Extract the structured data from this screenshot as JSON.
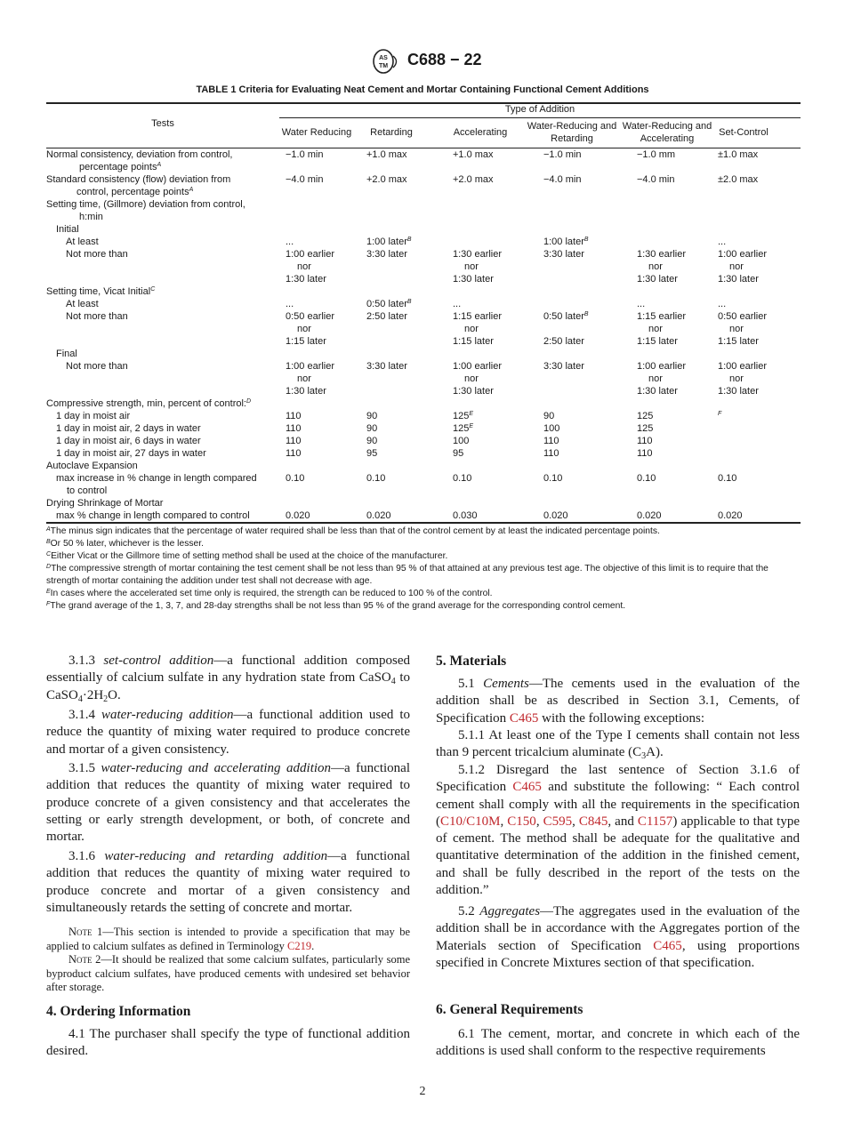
{
  "header": {
    "doc_id": "C688 − 22",
    "logo_text": "ASTM"
  },
  "table": {
    "title": "TABLE 1 Criteria for Evaluating Neat Cement and Mortar Containing Functional Cement Additions",
    "tests_header": "Tests",
    "group_header": "Type of Addition",
    "columns": [
      "Water Reducing",
      "Retarding",
      "Accelerating",
      "Water-Reducing and Retarding",
      "Water-Reducing and Accelerating",
      "Set-Control"
    ],
    "rows": [
      {
        "test": "Normal consistency, deviation from control,",
        "cells": [
          "−1.0 min",
          "+1.0 max",
          "+1.0 max",
          "−1.0 min",
          "−1.0 mm",
          "±1.0 max"
        ]
      },
      {
        "test": "percentage points",
        "sup": "A",
        "cells": [
          "",
          "",
          "",
          "",
          "",
          ""
        ]
      },
      {
        "test": "Standard consistency (flow) deviation from",
        "cells": [
          "−4.0 min",
          "+2.0 max",
          "+2.0 max",
          "−4.0 min",
          "−4.0 min",
          "±2.0 max"
        ]
      },
      {
        "test": "control, percentage points",
        "sup": "A",
        "cells": [
          "",
          "",
          "",
          "",
          "",
          ""
        ]
      },
      {
        "test": "Setting time, (Gillmore) deviation from control,",
        "cells": [
          "",
          "",
          "",
          "",
          "",
          ""
        ]
      },
      {
        "test": "h:min",
        "cells": [
          "",
          "",
          "",
          "",
          "",
          ""
        ]
      },
      {
        "test": "Initial",
        "cells": [
          "",
          "",
          "",
          "",
          "",
          ""
        ]
      },
      {
        "test": "At least",
        "cells": [
          "...",
          "1:00 later|B",
          "",
          "1:00 later|B",
          "",
          "..."
        ]
      },
      {
        "test": "Not more than",
        "cells": [
          "1:00 earlier",
          "3:30 later",
          "1:30 earlier",
          "3:30 later",
          "1:30 earlier",
          "1:00 earlier"
        ]
      },
      {
        "test": "",
        "cells": [
          "nor",
          "",
          "nor",
          "",
          "nor",
          "nor"
        ]
      },
      {
        "test": "",
        "cells": [
          "1:30 later",
          "",
          "1:30 later",
          "",
          "1:30 later",
          "1:30 later"
        ]
      },
      {
        "test": "Setting time, Vicat Initial",
        "sup": "C",
        "cells": [
          "",
          "",
          "",
          "",
          "",
          ""
        ]
      },
      {
        "test": "At least",
        "cells": [
          "...",
          "0:50 later|B",
          "...",
          "",
          "...",
          "..."
        ]
      },
      {
        "test": "Not more than",
        "cells": [
          "0:50 earlier",
          "2:50 later",
          "1:15 earlier",
          "0:50 later|B",
          "1:15 earlier",
          "0:50 earlier"
        ]
      },
      {
        "test": "",
        "cells": [
          "nor",
          "",
          "nor",
          "",
          "nor",
          "nor"
        ]
      },
      {
        "test": "",
        "cells": [
          "1:15 later",
          "",
          "1:15 later",
          "2:50 later",
          "1:15 later",
          "1:15 later"
        ]
      },
      {
        "test": "Final",
        "cells": [
          "",
          "",
          "",
          "",
          "",
          ""
        ]
      },
      {
        "test": "Not more than",
        "cells": [
          "1:00 earlier",
          "3:30 later",
          "1:00 earlier",
          "3:30 later",
          "1:00 earlier",
          "1:00 earlier"
        ]
      },
      {
        "test": "",
        "cells": [
          "nor",
          "",
          "nor",
          "",
          "nor",
          "nor"
        ]
      },
      {
        "test": "",
        "cells": [
          "1:30 later",
          "",
          "1:30 later",
          "",
          "1:30 later",
          "1:30 later"
        ]
      },
      {
        "test": "Compressive strength, min, percent of control:",
        "sup": "D",
        "cells": [
          "",
          "",
          "",
          "",
          "",
          ""
        ]
      },
      {
        "test": "1 day in moist air",
        "cells": [
          "110",
          "90",
          "125|E",
          "90",
          "125",
          "|F"
        ]
      },
      {
        "test": "1 day in moist air, 2 days in water",
        "cells": [
          "110",
          "90",
          "125|E",
          "100",
          "125",
          ""
        ]
      },
      {
        "test": "1 day in moist air, 6 days in water",
        "cells": [
          "110",
          "90",
          "100",
          "110",
          "110",
          ""
        ]
      },
      {
        "test": "1 day in moist air, 27 days in water",
        "cells": [
          "110",
          "95",
          "95",
          "110",
          "110",
          ""
        ]
      },
      {
        "test": "Autoclave Expansion",
        "cells": [
          "",
          "",
          "",
          "",
          "",
          ""
        ]
      },
      {
        "test": "max increase in % change in length compared",
        "cells": [
          "0.10",
          "0.10",
          "0.10",
          "0.10",
          "0.10",
          "0.10"
        ]
      },
      {
        "test": "to control",
        "cells": [
          "",
          "",
          "",
          "",
          "",
          ""
        ]
      },
      {
        "test": "Drying Shrinkage of Mortar",
        "cells": [
          "",
          "",
          "",
          "",
          "",
          ""
        ]
      },
      {
        "test": "max % change in length compared to control",
        "cells": [
          "0.020",
          "0.020",
          "0.030",
          "0.020",
          "0.020",
          "0.020"
        ]
      }
    ],
    "footnotes": [
      {
        "mark": "A",
        "text": "The minus sign indicates that the percentage of water required shall be less than that of the control cement by at least the indicated percentage points."
      },
      {
        "mark": "B",
        "text": "Or 50 % later, whichever is the lesser."
      },
      {
        "mark": "C",
        "text": "Either Vicat or the Gillmore time of setting method shall be used at the choice of the manufacturer."
      },
      {
        "mark": "D",
        "text": "The compressive strength of mortar containing the test cement shall be not less than 95 % of that attained at any previous test age. The objective of this limit is to require that the strength of mortar containing the addition under test shall not decrease with age."
      },
      {
        "mark": "E",
        "text": "In cases where the accelerated set time only is required, the strength can be reduced to 100 % of the control."
      },
      {
        "mark": "F",
        "text": "The grand average of the 1, 3, 7, and 28-day strengths shall be not less than 95 % of the grand average for the corresponding control cement."
      }
    ]
  },
  "body": {
    "left": [
      [
        {
          "t": "3.1.3 "
        },
        {
          "t": "set-control addition",
          "s": "i"
        },
        {
          "t": "—a functional addition composed essentially of calcium sulfate in any hydration state from CaSO"
        },
        {
          "t": "4",
          "s": "sub"
        },
        {
          "t": " to CaSO"
        },
        {
          "t": "4",
          "s": "sub"
        },
        {
          "t": "·2H"
        },
        {
          "t": "2",
          "s": "sub"
        },
        {
          "t": "O."
        }
      ],
      [
        {
          "t": "3.1.4 "
        },
        {
          "t": "water-reducing addition",
          "s": "i"
        },
        {
          "t": "—a functional addition used to reduce the quantity of mixing water required to produce concrete and mortar of a given consistency."
        }
      ],
      [
        {
          "t": "3.1.5 "
        },
        {
          "t": "water-reducing and accelerating addition",
          "s": "i"
        },
        {
          "t": "—a functional addition that reduces the quantity of mixing water required to produce concrete of a given consistency and that accelerates the setting or early strength development, or both, of concrete and mortar."
        }
      ],
      [
        {
          "t": "3.1.6 "
        },
        {
          "t": "water-reducing and retarding addition",
          "s": "i"
        },
        {
          "t": "—a functional addition that reduces the quantity of mixing water required to produce concrete and mortar of a given consistency and simultaneously retards the setting of concrete and mortar."
        }
      ],
      [
        {
          "t": "Note",
          "s": "sc"
        },
        {
          "t": " 1—This section is intended to provide a specification that may be applied to calcium sulfates as defined in Terminology "
        },
        {
          "t": "C219",
          "s": "a"
        },
        {
          "t": "."
        }
      ],
      [
        {
          "t": "Note",
          "s": "sc"
        },
        {
          "t": " 2—It should be realized that some calcium sulfates, particularly some byproduct calcium sulfates, have produced cements with undesired set behavior after storage."
        }
      ],
      [
        {
          "t": "4.  Ordering Information"
        }
      ],
      [
        {
          "t": "4.1 The purchaser shall specify the type of functional addition desired."
        }
      ]
    ],
    "right": [
      [
        {
          "t": "5.  Materials"
        }
      ],
      [
        {
          "t": "5.1 "
        },
        {
          "t": "Cements",
          "s": "i"
        },
        {
          "t": "—The cements used in the evaluation of the addition shall be as described in Section 3.1, Cements, of Specification "
        },
        {
          "t": "C465",
          "s": "a"
        },
        {
          "t": " with the following exceptions:"
        }
      ],
      [
        {
          "t": "5.1.1 At least one of the Type I cements shall contain not less than 9 percent tricalcium aluminate (C"
        },
        {
          "t": "3",
          "s": "sub"
        },
        {
          "t": "A)."
        }
      ],
      [
        {
          "t": "5.1.2 Disregard the last sentence of Section 3.1.6 of Specification "
        },
        {
          "t": "C465",
          "s": "a"
        },
        {
          "t": " and substitute the following: “ Each control cement shall comply with all the requirements in the specification ("
        },
        {
          "t": "C10/C10M",
          "s": "a"
        },
        {
          "t": ", "
        },
        {
          "t": "C150",
          "s": "a"
        },
        {
          "t": ", "
        },
        {
          "t": "C595",
          "s": "a"
        },
        {
          "t": ", "
        },
        {
          "t": "C845",
          "s": "a"
        },
        {
          "t": ", and "
        },
        {
          "t": "C1157",
          "s": "a"
        },
        {
          "t": ") applicable to that type of cement. The method shall be adequate for the qualitative and quantitative determination of the addition in the finished cement, and shall be fully described in the report of the tests on the addition.”"
        }
      ],
      [
        {
          "t": "5.2 "
        },
        {
          "t": "Aggregates",
          "s": "i"
        },
        {
          "t": "—The aggregates used in the evaluation of the addition shall be in accordance with the Aggregates portion of the Materials section of Specification "
        },
        {
          "t": "C465",
          "s": "a"
        },
        {
          "t": ", using proportions specified in Concrete Mixtures section of that specification."
        }
      ],
      [
        {
          "t": "6.  General Requirements"
        }
      ],
      [
        {
          "t": "6.1 The cement, mortar, and concrete in which each of the additions is used shall conform to the respective requirements"
        }
      ]
    ]
  },
  "page_number": "2",
  "colors": {
    "link": "#c0282d",
    "text": "#1a1a1a"
  }
}
